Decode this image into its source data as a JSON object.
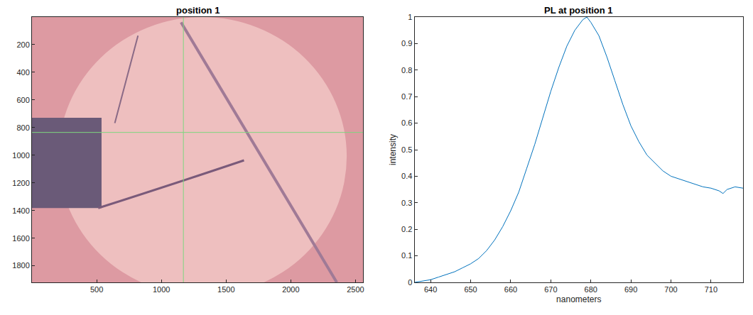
{
  "chart_data": [
    {
      "type": "image",
      "title": "position 1",
      "xlim": [
        0,
        2560
      ],
      "ylim": [
        1920,
        0
      ],
      "xticks": [
        500,
        1000,
        1500,
        2000,
        2500
      ],
      "yticks": [
        200,
        400,
        600,
        800,
        1000,
        1200,
        1400,
        1600,
        1800
      ],
      "crosshair": {
        "x": 1170,
        "y": 835
      },
      "color": "#7ed67e",
      "grid": false
    },
    {
      "type": "line",
      "title": "PL at position 1",
      "x_label": "nanometers",
      "y_label": "intensity",
      "x": [
        636,
        638,
        640,
        642,
        644,
        646,
        648,
        650,
        652,
        654,
        656,
        658,
        660,
        662,
        664,
        666,
        668,
        670,
        672,
        674,
        676,
        678,
        679,
        680,
        682,
        684,
        686,
        688,
        690,
        692,
        694,
        696,
        698,
        700,
        702,
        704,
        706,
        708,
        710,
        712,
        713,
        714,
        716,
        718
      ],
      "values": [
        0.0,
        0.005,
        0.01,
        0.02,
        0.03,
        0.04,
        0.055,
        0.07,
        0.09,
        0.12,
        0.16,
        0.21,
        0.27,
        0.34,
        0.43,
        0.52,
        0.62,
        0.72,
        0.81,
        0.89,
        0.95,
        0.99,
        1.0,
        0.98,
        0.93,
        0.85,
        0.76,
        0.67,
        0.59,
        0.53,
        0.48,
        0.45,
        0.42,
        0.4,
        0.39,
        0.38,
        0.37,
        0.36,
        0.355,
        0.345,
        0.335,
        0.35,
        0.36,
        0.355
      ],
      "color": "#0072bd",
      "xlim": [
        636,
        718
      ],
      "ylim": [
        0,
        1
      ],
      "xticks": [
        640,
        650,
        660,
        670,
        680,
        690,
        700,
        710
      ],
      "yticks": [
        0,
        0.1,
        0.2,
        0.3,
        0.4,
        0.5,
        0.6,
        0.7,
        0.8,
        0.9,
        1
      ],
      "grid": false
    }
  ]
}
